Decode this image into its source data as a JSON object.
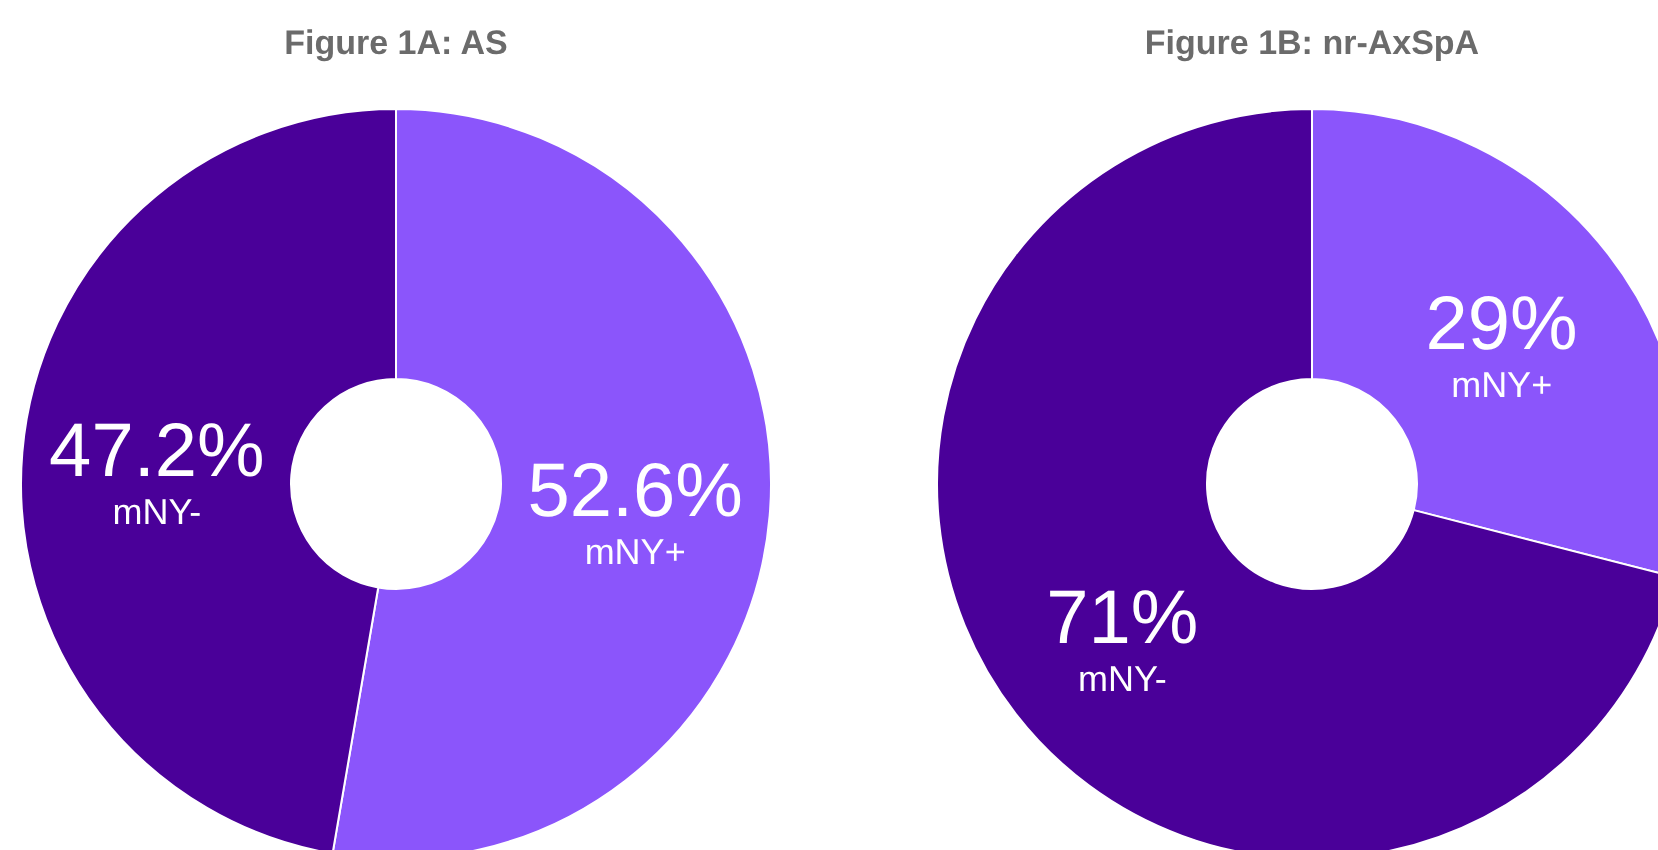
{
  "chart_data": [
    {
      "type": "donut",
      "title": "Figure 1A: AS",
      "categories": [
        "mNY+",
        "mNY-"
      ],
      "values": [
        52.6,
        47.2
      ],
      "colors": [
        "#8b55fb",
        "#4a0099"
      ],
      "value_labels": [
        "52.6%",
        "47.2%"
      ],
      "legend": false
    },
    {
      "type": "donut",
      "title": "Figure 1B: nr-AxSpA",
      "categories": [
        "mNY+",
        "mNY-"
      ],
      "values": [
        29,
        71
      ],
      "colors": [
        "#8b55fb",
        "#4a0099"
      ],
      "value_labels": [
        "29%",
        "71%"
      ],
      "legend": false
    }
  ]
}
